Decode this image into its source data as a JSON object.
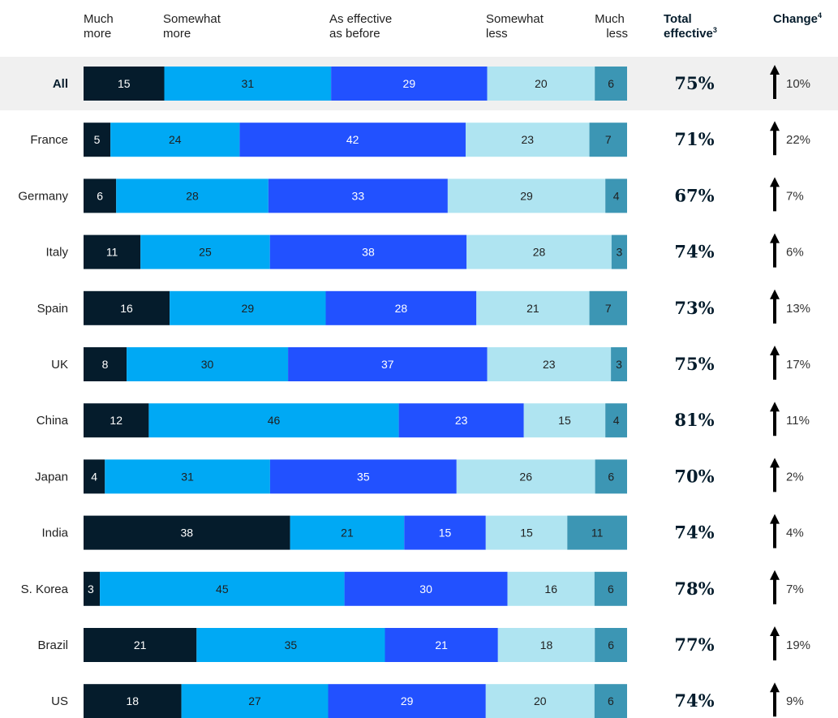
{
  "colors": {
    "segments": [
      "#051c2c",
      "#00a9f4",
      "#2251ff",
      "#afe4f1",
      "#3c96b4"
    ],
    "labels": [
      "#ffffff",
      "#1f1f1f",
      "#ffffff",
      "#1f1f1f",
      "#1f1f1f"
    ],
    "highlight_row": "#f0f0f0",
    "arrow": "#000000"
  },
  "header": {
    "much_more": [
      "Much",
      "more"
    ],
    "somewhat_more": [
      "Somewhat",
      "more"
    ],
    "as_effective": [
      "As effective",
      "as before"
    ],
    "somewhat_less": [
      "Somewhat",
      "less"
    ],
    "much_less": [
      "Much",
      "less"
    ],
    "total_effective": [
      "Total",
      "effective"
    ],
    "total_effective_sup": "3",
    "change": "Change",
    "change_sup": "4"
  },
  "chart_data": {
    "type": "bar",
    "orientation": "horizontal",
    "stacked": true,
    "categories": [
      "All",
      "France",
      "Germany",
      "Italy",
      "Spain",
      "UK",
      "China",
      "Japan",
      "India",
      "S. Korea",
      "Brazil",
      "US"
    ],
    "series": [
      {
        "name": "Much more",
        "values": [
          15,
          5,
          6,
          11,
          16,
          8,
          12,
          4,
          38,
          3,
          21,
          18
        ]
      },
      {
        "name": "Somewhat more",
        "values": [
          31,
          24,
          28,
          25,
          29,
          30,
          46,
          31,
          21,
          45,
          35,
          27
        ]
      },
      {
        "name": "As effective as before",
        "values": [
          29,
          42,
          33,
          38,
          28,
          37,
          23,
          35,
          15,
          30,
          21,
          29
        ]
      },
      {
        "name": "Somewhat less",
        "values": [
          20,
          23,
          29,
          28,
          21,
          23,
          15,
          26,
          15,
          16,
          18,
          20
        ]
      },
      {
        "name": "Much less",
        "values": [
          6,
          7,
          4,
          3,
          7,
          3,
          4,
          6,
          11,
          6,
          6,
          6
        ]
      }
    ],
    "total_effective": [
      "75%",
      "71%",
      "67%",
      "74%",
      "73%",
      "75%",
      "81%",
      "70%",
      "74%",
      "78%",
      "77%",
      "74%"
    ],
    "change": [
      "10%",
      "22%",
      "7%",
      "6%",
      "13%",
      "17%",
      "11%",
      "2%",
      "4%",
      "7%",
      "19%",
      "9%"
    ],
    "change_direction": [
      "up",
      "up",
      "up",
      "up",
      "up",
      "up",
      "up",
      "up",
      "up",
      "up",
      "up",
      "up"
    ],
    "highlighted_category": "All",
    "title": "",
    "xlabel": "",
    "ylabel": ""
  }
}
